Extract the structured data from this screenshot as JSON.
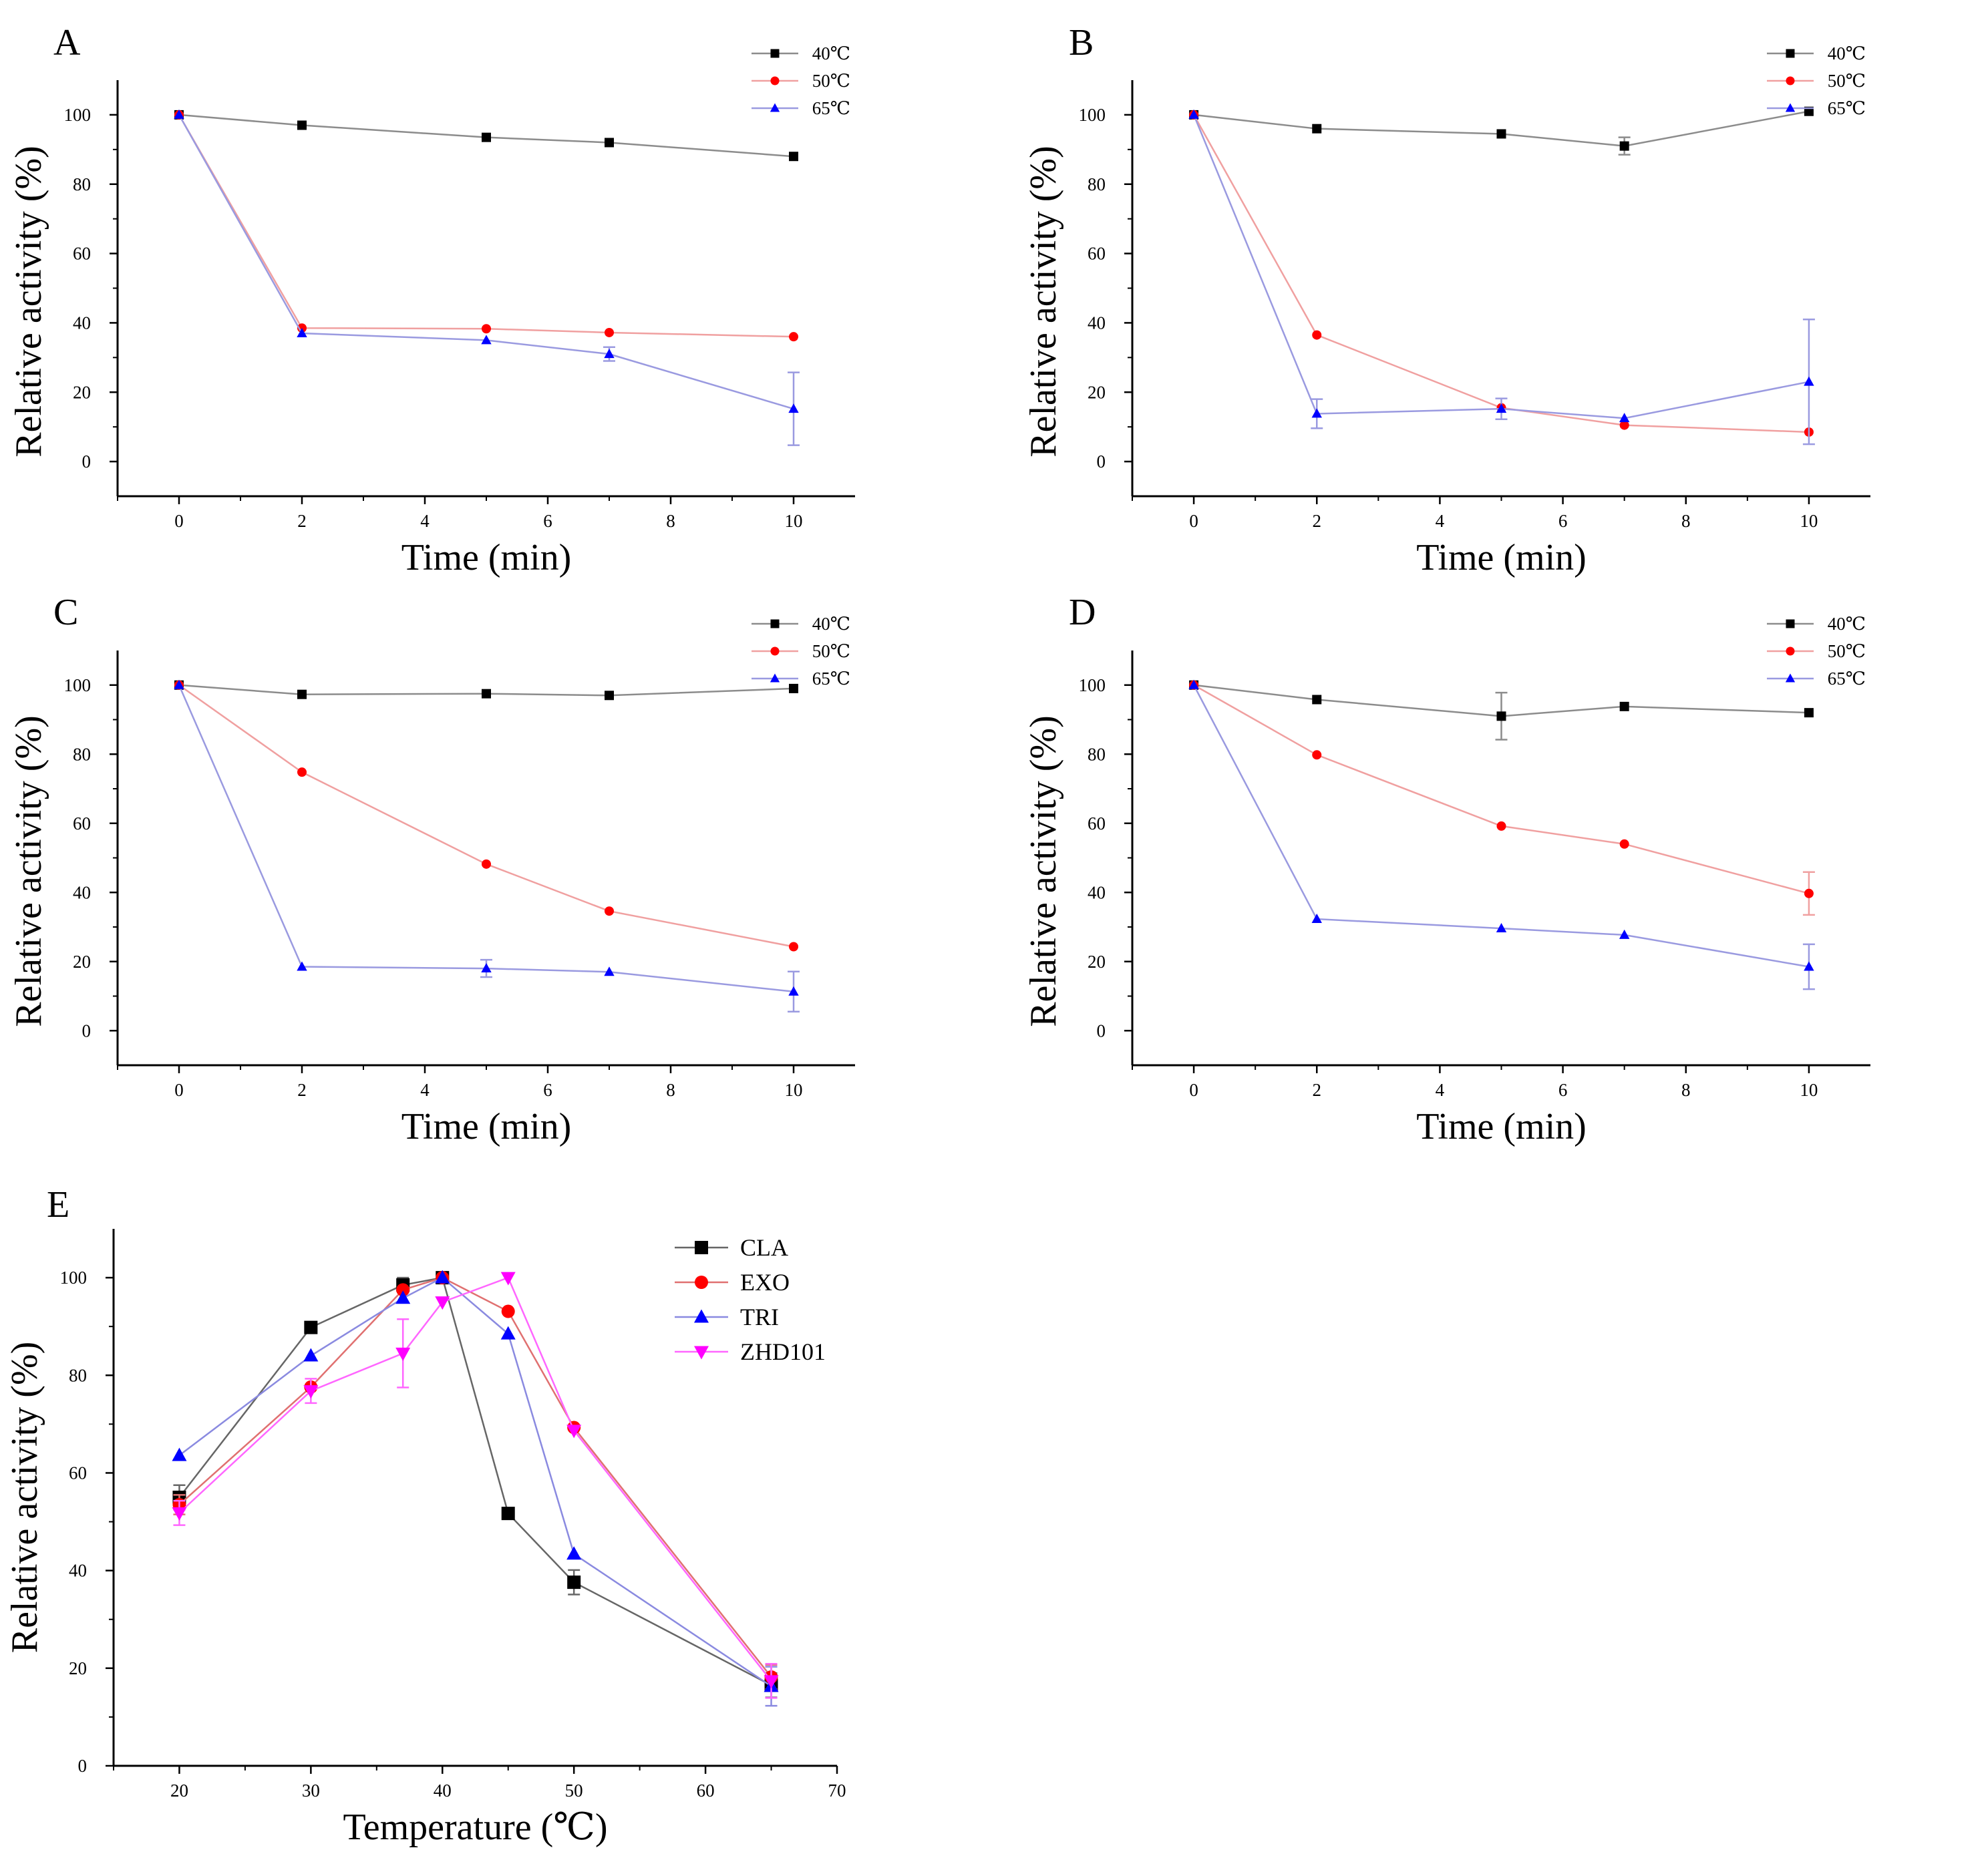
{
  "chart_data": [
    {
      "panel": "A",
      "type": "line",
      "xlabel": "Time (min)",
      "ylabel": "Relative activity (%)",
      "xlim": [
        -1,
        11
      ],
      "ylim": [
        -10,
        110
      ],
      "xticks": [
        0,
        2,
        4,
        6,
        8,
        10
      ],
      "yticks": [
        0,
        20,
        40,
        60,
        80,
        100
      ],
      "x": [
        0,
        2,
        5,
        7,
        10
      ],
      "series": [
        {
          "name": "40℃",
          "marker": "square",
          "color": "#000000",
          "line_color": "#8c8c8c",
          "values": [
            100,
            97,
            93.5,
            92,
            88
          ],
          "errors": [
            0,
            0,
            0,
            0,
            0
          ]
        },
        {
          "name": "50℃",
          "marker": "circle",
          "color": "#ff0000",
          "line_color": "#f0a0a0",
          "values": [
            100,
            38.5,
            38.3,
            37.2,
            36
          ],
          "errors": [
            0,
            0,
            0,
            0,
            0
          ]
        },
        {
          "name": "65℃",
          "marker": "triangle-up",
          "color": "#0000ff",
          "line_color": "#9a9ae0",
          "values": [
            100,
            37,
            35,
            31,
            15.2
          ],
          "errors": [
            0,
            0,
            0,
            2,
            10.5
          ]
        }
      ]
    },
    {
      "panel": "B",
      "type": "line",
      "xlabel": "Time (min)",
      "ylabel": "Relative activity (%)",
      "xlim": [
        -1,
        11
      ],
      "ylim": [
        -10,
        110
      ],
      "xticks": [
        0,
        2,
        4,
        6,
        8,
        10
      ],
      "yticks": [
        0,
        20,
        40,
        60,
        80,
        100
      ],
      "x": [
        0,
        2,
        5,
        7,
        10
      ],
      "series": [
        {
          "name": "40℃",
          "marker": "square",
          "color": "#000000",
          "line_color": "#8c8c8c",
          "values": [
            100,
            96,
            94.5,
            91,
            101
          ],
          "errors": [
            0,
            0,
            0,
            2.5,
            0
          ]
        },
        {
          "name": "50℃",
          "marker": "circle",
          "color": "#ff0000",
          "line_color": "#f0a0a0",
          "values": [
            100,
            36.5,
            15.5,
            10.5,
            8.5
          ],
          "errors": [
            0,
            0,
            0,
            0,
            0
          ]
        },
        {
          "name": "65℃",
          "marker": "triangle-up",
          "color": "#0000ff",
          "line_color": "#9a9ae0",
          "values": [
            100,
            13.8,
            15.2,
            12.5,
            23
          ],
          "errors": [
            0,
            4.2,
            3,
            0,
            18
          ]
        }
      ]
    },
    {
      "panel": "C",
      "type": "line",
      "xlabel": "Time (min)",
      "ylabel": "Relative activity (%)",
      "xlim": [
        -1,
        11
      ],
      "ylim": [
        -10,
        110
      ],
      "xticks": [
        0,
        2,
        4,
        6,
        8,
        10
      ],
      "yticks": [
        0,
        20,
        40,
        60,
        80,
        100
      ],
      "x": [
        0,
        2,
        5,
        7,
        10
      ],
      "series": [
        {
          "name": "40℃",
          "marker": "square",
          "color": "#000000",
          "line_color": "#8c8c8c",
          "values": [
            100,
            97.3,
            97.5,
            97,
            99
          ],
          "errors": [
            0,
            0,
            0,
            0,
            0
          ]
        },
        {
          "name": "50℃",
          "marker": "circle",
          "color": "#ff0000",
          "line_color": "#f0a0a0",
          "values": [
            100,
            74.8,
            48.2,
            34.6,
            24.3
          ],
          "errors": [
            0,
            0,
            0,
            0,
            0
          ]
        },
        {
          "name": "65℃",
          "marker": "triangle-up",
          "color": "#0000ff",
          "line_color": "#9a9ae0",
          "values": [
            100,
            18.5,
            18,
            17,
            11.3
          ],
          "errors": [
            0,
            0,
            2.5,
            0,
            5.8
          ]
        }
      ]
    },
    {
      "panel": "D",
      "type": "line",
      "xlabel": "Time (min)",
      "ylabel": "Relative activity (%)",
      "xlim": [
        -1,
        11
      ],
      "ylim": [
        -10,
        110
      ],
      "xticks": [
        0,
        2,
        4,
        6,
        8,
        10
      ],
      "yticks": [
        0,
        20,
        40,
        60,
        80,
        100
      ],
      "x": [
        0,
        2,
        5,
        7,
        10
      ],
      "series": [
        {
          "name": "40℃",
          "marker": "square",
          "color": "#000000",
          "line_color": "#8c8c8c",
          "values": [
            100,
            95.8,
            91,
            93.8,
            92
          ],
          "errors": [
            0,
            0,
            6.8,
            0,
            0
          ]
        },
        {
          "name": "50℃",
          "marker": "circle",
          "color": "#ff0000",
          "line_color": "#f0a0a0",
          "values": [
            100,
            79.8,
            59.2,
            54,
            39.7
          ],
          "errors": [
            0,
            0,
            0,
            0,
            6.2
          ]
        },
        {
          "name": "65℃",
          "marker": "triangle-up",
          "color": "#0000ff",
          "line_color": "#9a9ae0",
          "values": [
            100,
            32.3,
            29.6,
            27.7,
            18.5
          ],
          "errors": [
            0,
            0,
            0,
            0,
            6.5
          ]
        }
      ]
    },
    {
      "panel": "E",
      "type": "line",
      "xlabel": "Temperature (℃)",
      "ylabel": "Relative activity (%)",
      "xlim": [
        15,
        70
      ],
      "ylim": [
        0,
        110
      ],
      "xticks": [
        20,
        30,
        40,
        50,
        60,
        70
      ],
      "yticks": [
        0,
        20,
        40,
        60,
        80,
        100
      ],
      "x": [
        20,
        30,
        37,
        40,
        45,
        50,
        65
      ],
      "series": [
        {
          "name": "CLA",
          "marker": "square",
          "color": "#000000",
          "line_color": "#666666",
          "values": [
            55,
            89.8,
            98.5,
            100,
            51.7,
            37.6,
            16.5
          ],
          "errors": [
            2.5,
            0,
            1.5,
            0,
            0,
            2.5,
            2.5
          ]
        },
        {
          "name": "EXO",
          "marker": "circle",
          "color": "#ff0000",
          "line_color": "#e07070",
          "values": [
            53.5,
            77.6,
            97.5,
            100,
            93.1,
            69.3,
            18.2
          ],
          "errors": [
            2,
            0,
            0,
            0,
            0,
            0,
            2.5
          ]
        },
        {
          "name": "TRI",
          "marker": "triangle-up",
          "color": "#0000ff",
          "line_color": "#8a8ae0",
          "values": [
            63.6,
            84,
            95.8,
            100,
            88.5,
            43.4,
            16.3
          ],
          "errors": [
            0,
            0,
            0,
            0,
            0,
            0,
            4
          ]
        },
        {
          "name": "ZHD101",
          "marker": "triangle-down",
          "color": "#ff00ff",
          "line_color": "#ff66ff",
          "values": [
            51.8,
            76.8,
            84.5,
            95,
            100,
            68.7,
            17.4
          ],
          "errors": [
            2.5,
            2.5,
            7,
            0,
            0,
            0,
            3.5
          ]
        }
      ]
    }
  ]
}
